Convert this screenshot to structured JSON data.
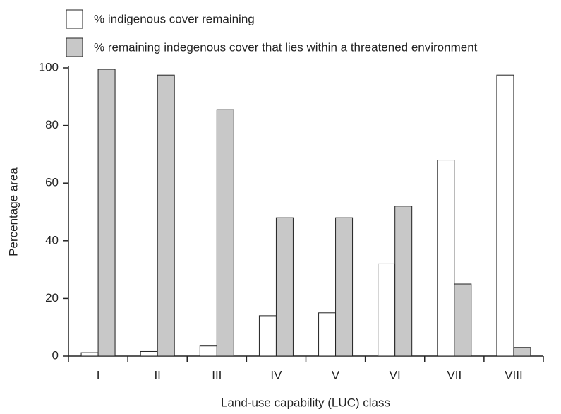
{
  "chart_data": {
    "type": "bar",
    "x_label": "Land-use capability (LUC) class",
    "y_label": "Percentage area",
    "categories": [
      "I",
      "II",
      "III",
      "IV",
      "V",
      "VI",
      "VII",
      "VIII"
    ],
    "series": [
      {
        "name": "% indigenous cover remaining",
        "color": "#ffffff",
        "values": [
          1.2,
          1.6,
          3.5,
          14,
          15,
          32,
          68,
          97.5
        ]
      },
      {
        "name": "% remaining indegenous cover that lies within a threatened environment",
        "color": "#c8c8c8",
        "values": [
          99.5,
          97.5,
          85.5,
          48,
          48,
          52,
          25,
          3
        ]
      }
    ],
    "ylim": [
      0,
      100
    ],
    "yticks": [
      0,
      20,
      40,
      60,
      80,
      100
    ],
    "grid": false
  }
}
